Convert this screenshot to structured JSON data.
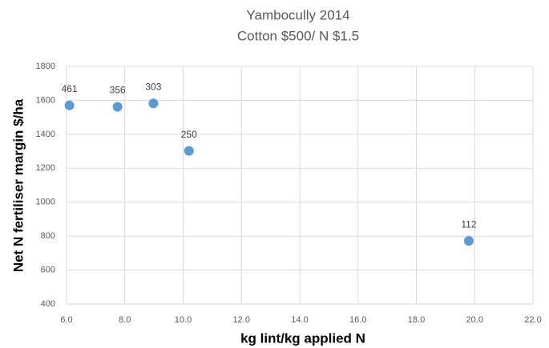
{
  "chart_data": {
    "type": "scatter",
    "title": "Yambocully 2014",
    "subtitle": "Cotton $500/ N $1.5",
    "x_label": "kg lint/kg applied N",
    "y_label": "Net N fertiliser margin $/ha",
    "series": [
      {
        "color": "#5b9bd5",
        "x": [
          6.1,
          7.75,
          8.98,
          10.2,
          19.8
        ],
        "values": [
          1570,
          1562,
          1582,
          1302,
          772
        ],
        "labels": [
          "461",
          "356",
          "303",
          "250",
          "112"
        ]
      }
    ],
    "xlim": [
      6,
      22
    ],
    "xticks": [
      {
        "value": 6,
        "label": "6.0"
      },
      {
        "value": 8,
        "label": "8.0"
      },
      {
        "value": 10,
        "label": "10.0"
      },
      {
        "value": 12,
        "label": "12.0"
      },
      {
        "value": 14,
        "label": "14.0"
      },
      {
        "value": 16,
        "label": "16.0"
      },
      {
        "value": 18,
        "label": "18.0"
      },
      {
        "value": 20,
        "label": "20.0"
      },
      {
        "value": 22,
        "label": "22.0"
      }
    ],
    "ylim": [
      400,
      1800
    ],
    "yticks": [
      400,
      600,
      800,
      1000,
      1200,
      1400,
      1600,
      1800
    ],
    "grid": true
  }
}
